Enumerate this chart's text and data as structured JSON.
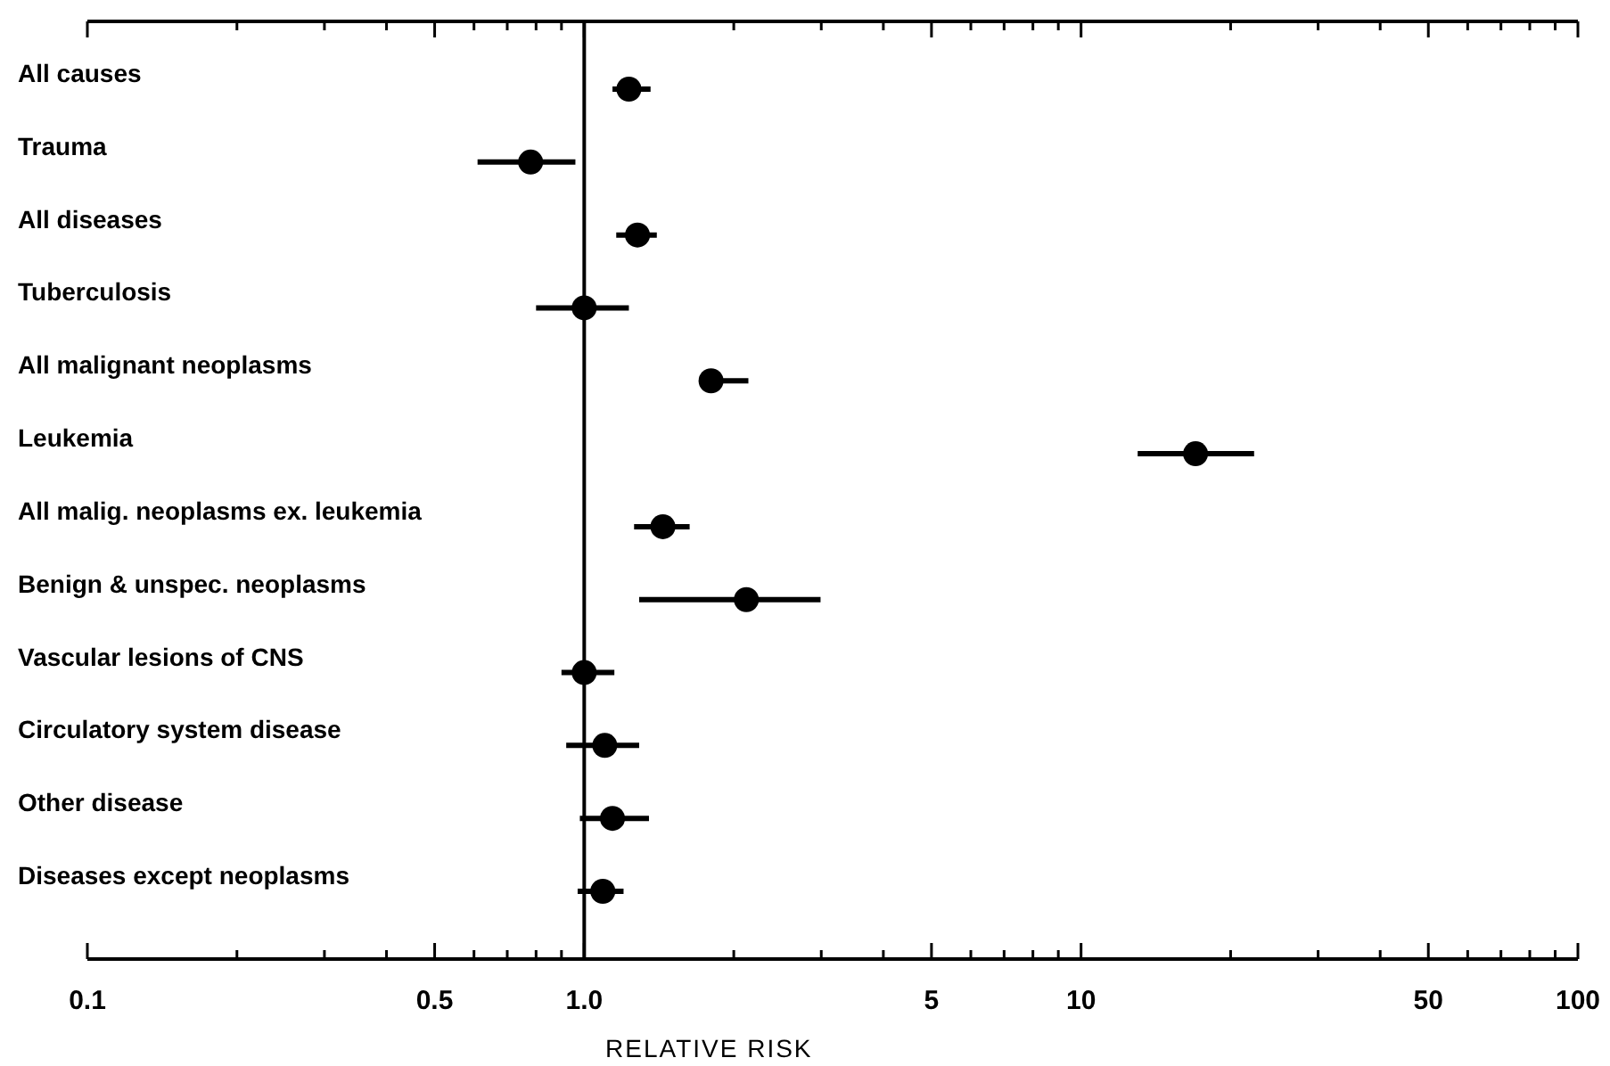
{
  "chart_data": {
    "type": "scatter",
    "xlabel": "RELATIVE RISK",
    "orientation": "horizontal",
    "categories": [
      "All causes",
      "Trauma",
      "All diseases",
      "Tuberculosis",
      "All malignant neoplasms",
      "Leukemia",
      "All malig. neoplasms ex. leukemia",
      "Benign & unspec. neoplasms",
      "Vascular lesions of CNS",
      "Circulatory system disease",
      "Other disease",
      "Diseases except neoplasms"
    ],
    "series": [
      {
        "color": "#000000",
        "values": [
          1.23,
          0.78,
          1.28,
          1.0,
          1.8,
          17,
          1.44,
          2.12,
          1.0,
          1.1,
          1.14,
          1.09
        ],
        "errors": [
          [
            1.14,
            1.36
          ],
          [
            0.61,
            0.96
          ],
          [
            1.16,
            1.4
          ],
          [
            0.8,
            1.23
          ],
          [
            1.71,
            2.14
          ],
          [
            13,
            22.3
          ],
          [
            1.26,
            1.63
          ],
          [
            1.29,
            2.99
          ],
          [
            0.9,
            1.15
          ],
          [
            0.92,
            1.29
          ],
          [
            0.98,
            1.35
          ],
          [
            0.97,
            1.2
          ]
        ]
      }
    ],
    "xlim": [
      0.1,
      100
    ],
    "xticks": [
      0.1,
      {
        "value": 0.2,
        "label": null
      },
      {
        "value": 0.3,
        "label": null
      },
      {
        "value": 0.4,
        "label": null
      },
      0.5,
      {
        "value": 0.6,
        "label": null
      },
      {
        "value": 0.7,
        "label": null
      },
      {
        "value": 0.8,
        "label": null
      },
      {
        "value": 0.9,
        "label": null
      },
      {
        "value": 1,
        "label": "1.0"
      },
      {
        "value": 2,
        "label": null
      },
      {
        "value": 3,
        "label": null
      },
      {
        "value": 4,
        "label": null
      },
      5,
      {
        "value": 6,
        "label": null
      },
      {
        "value": 7,
        "label": null
      },
      {
        "value": 8,
        "label": null
      },
      {
        "value": 9,
        "label": null
      },
      10,
      {
        "value": 20,
        "label": null
      },
      {
        "value": 30,
        "label": null
      },
      {
        "value": 40,
        "label": null
      },
      50,
      {
        "value": 60,
        "label": null
      },
      {
        "value": 70,
        "label": null
      },
      {
        "value": 80,
        "label": null
      },
      {
        "value": 90,
        "label": null
      },
      100
    ],
    "log": "x",
    "marker": "circle",
    "grid": false,
    "ref_lines": [
      {
        "axis": "x",
        "value": 1,
        "color": "#000000"
      }
    ]
  }
}
